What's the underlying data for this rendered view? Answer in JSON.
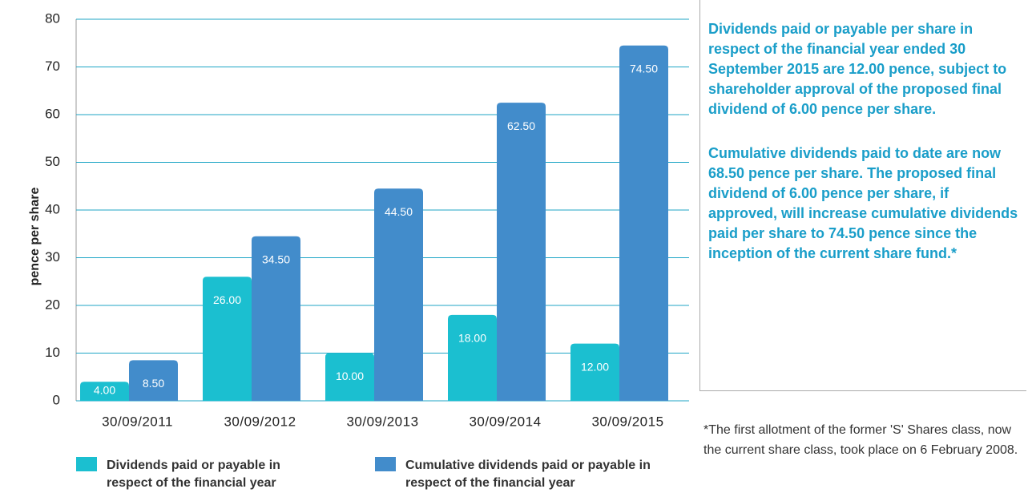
{
  "chart_data": {
    "type": "bar",
    "y_label": "pence per share",
    "categories": [
      "30/09/2011",
      "30/09/2012",
      "30/09/2013",
      "30/09/2014",
      "30/09/2015"
    ],
    "series": [
      {
        "name": "Dividends paid or payable in respect of the financial year",
        "color": "#1bbfd0",
        "values": [
          4,
          26,
          10,
          18,
          12
        ],
        "value_labels": [
          "4.00",
          "26.00",
          "10.00",
          "18.00",
          "12.00"
        ]
      },
      {
        "name": "Cumulative dividends paid or payable in respect of the financial year",
        "color": "#428ccb",
        "values": [
          8.5,
          34.5,
          44.5,
          62.5,
          74.5
        ],
        "value_labels": [
          "8.50",
          "34.50",
          "44.50",
          "62.50",
          "74.50"
        ]
      }
    ],
    "ylim": [
      0,
      80
    ],
    "yticks": [
      0,
      10,
      20,
      30,
      40,
      50,
      60,
      70,
      80
    ],
    "grid": true
  },
  "sidebar": {
    "paragraphs": [
      "Dividends paid or payable per share in respect of the financial year ended 30 September 2015 are 12.00 pence, subject to shareholder approval of the proposed final dividend of 6.00 pence per share.",
      "Cumulative dividends paid to date are now 68.50 pence per share. The proposed final dividend of 6.00 pence per share, if approved, will increase cumulative dividends paid per share to 74.50 pence since the inception of the current share fund.*"
    ],
    "footnote": "*The first allotment of the former 'S' Shares class, now the current share class, took place on 6 February 2008."
  }
}
